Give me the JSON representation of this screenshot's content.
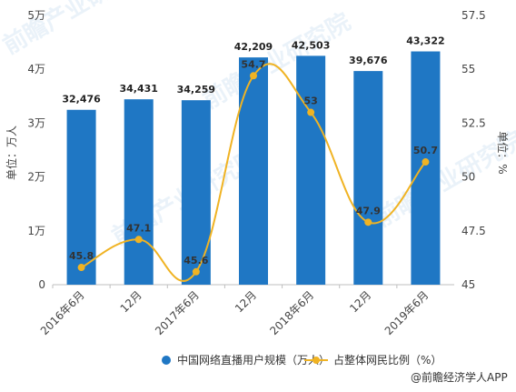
{
  "chart_data": {
    "type": "bar",
    "categories": [
      "2016年6月",
      "12月",
      "2017年6月",
      "12月",
      "2018年6月",
      "12月",
      "2019年6月"
    ],
    "bar_series": {
      "name": "中国网络直播用户规模（万人）",
      "values": [
        32476,
        34431,
        34259,
        42209,
        42503,
        39676,
        43322
      ],
      "labels": [
        "32,476",
        "34,431",
        "34,259",
        "42,209",
        "42,503",
        "39,676",
        "43,322"
      ],
      "color": "#1f77c4"
    },
    "line_series": {
      "name": "占整体网民比例（%）",
      "values": [
        45.8,
        47.1,
        45.6,
        54.7,
        53,
        47.9,
        50.7
      ],
      "labels": [
        "45.8",
        "47.1",
        "45.6",
        "54.7",
        "53",
        "47.9",
        "50.7"
      ],
      "color": "#f0b323",
      "smooth": true
    },
    "left_axis": {
      "label": "单位：万人",
      "ylim": [
        0,
        50000
      ],
      "ticks": [
        0,
        10000,
        20000,
        30000,
        40000,
        50000
      ],
      "tick_labels": [
        "0",
        "1万",
        "2万",
        "3万",
        "4万",
        "5万"
      ]
    },
    "right_axis": {
      "label": "单位：%",
      "ylim": [
        45,
        57.5
      ],
      "ticks": [
        45,
        47.5,
        50,
        52.5,
        55,
        57.5
      ],
      "tick_labels": [
        "45",
        "47.5",
        "50",
        "52.5",
        "55",
        "57.5"
      ]
    },
    "legend_position": "bottom",
    "grid": false
  },
  "source": "@前瞻经济学人APP",
  "watermark": "前瞻产业研究院"
}
